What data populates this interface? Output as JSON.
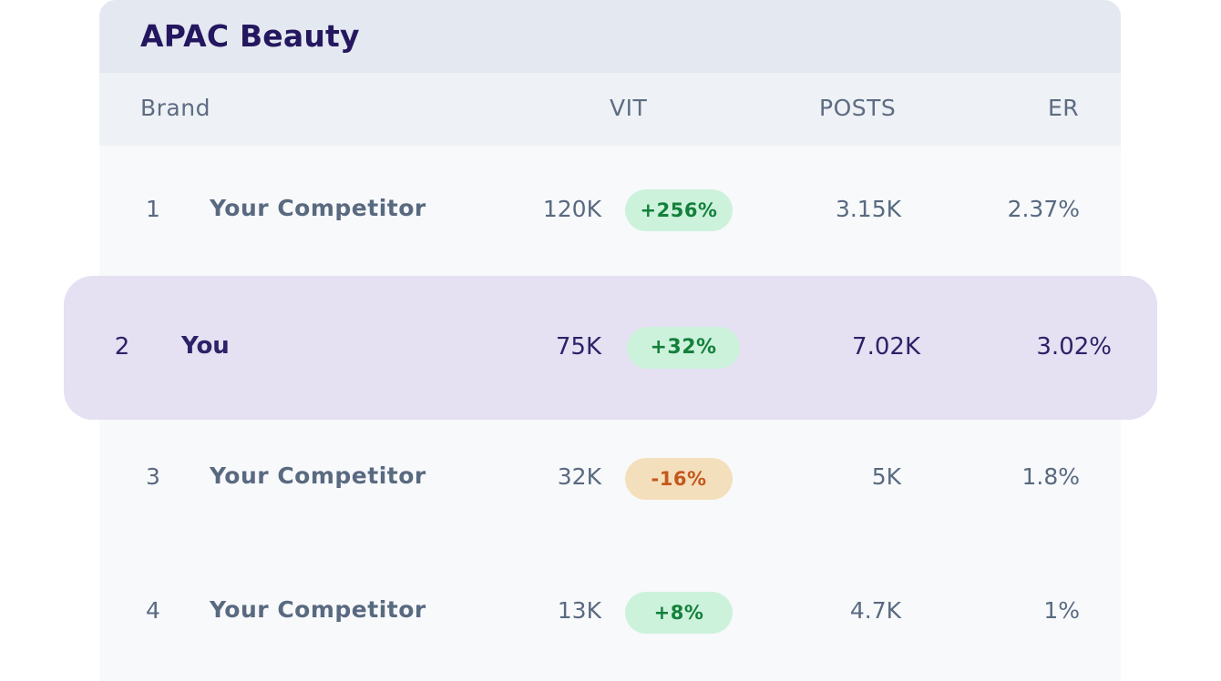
{
  "table": {
    "title": "APAC Beauty",
    "columns": {
      "brand": "Brand",
      "vit": "VIT",
      "posts": "POSTS",
      "er": "ER"
    },
    "rows": [
      {
        "rank": "1",
        "brand": "Your Competitor",
        "vit": "120K",
        "change": "+256%",
        "trend": "up",
        "posts": "3.15K",
        "er": "2.37%"
      },
      {
        "rank": "2",
        "brand": "You",
        "vit": "75K",
        "change": "+32%",
        "trend": "up",
        "posts": "7.02K",
        "er": "3.02%"
      },
      {
        "rank": "3",
        "brand": "Your Competitor",
        "vit": "32K",
        "change": "-16%",
        "trend": "down",
        "posts": "5K",
        "er": "1.8%"
      },
      {
        "rank": "4",
        "brand": "Your Competitor",
        "vit": "13K",
        "change": "+8%",
        "trend": "up",
        "posts": "4.7K",
        "er": "1%"
      }
    ]
  },
  "colors": {
    "title": "#24175f",
    "header_bg": "#e4e9f1",
    "highlight_bg": "#e5e0f2",
    "positive_pill": "#cdf2dc",
    "positive_text": "#14803b",
    "negative_pill": "#f4dfbd",
    "negative_text": "#c3581c"
  }
}
